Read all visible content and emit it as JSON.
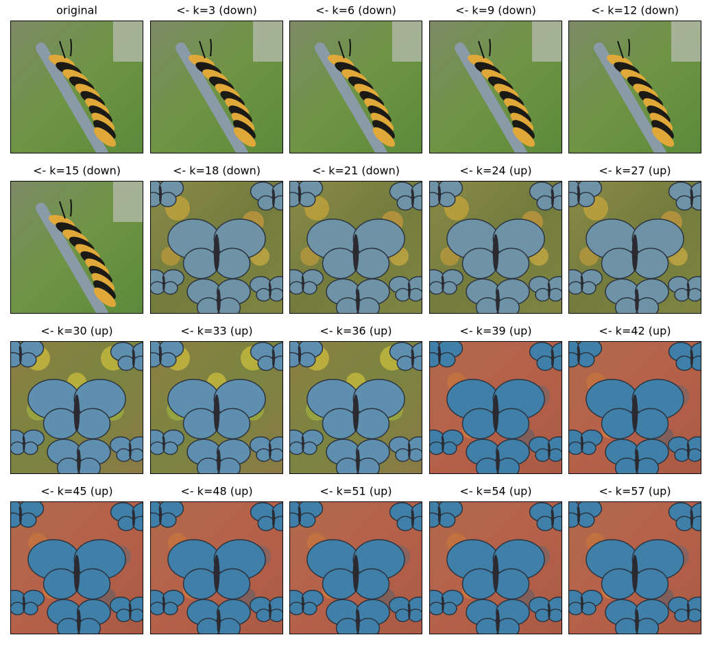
{
  "panels": [
    "original",
    "<- k=3 (down)",
    "<- k=6 (down)",
    "<- k=9 (down)",
    "<- k=12 (down)",
    "<- k=15 (down)",
    "<- k=18 (down)",
    "<- k=21 (down)",
    "<- k=24 (up)",
    "<- k=27 (up)",
    "<- k=30 (up)",
    "<- k=33 (up)",
    "<- k=36 (up)",
    "<- k=39 (up)",
    "<- k=42 (up)",
    "<- k=45 (up)",
    "<- k=48 (up)",
    "<- k=51 (up)",
    "<- k=54 (up)",
    "<- k=57 (up)"
  ]
}
